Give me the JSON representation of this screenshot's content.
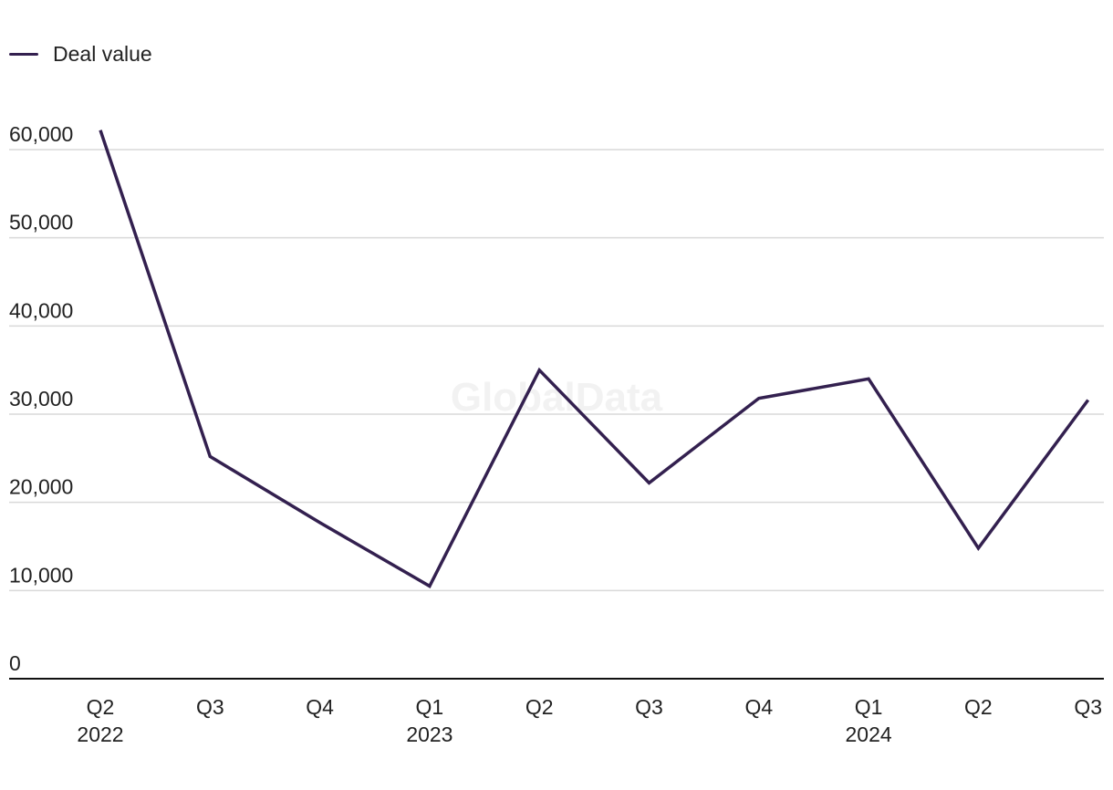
{
  "chart_data": {
    "type": "line",
    "categories": [
      [
        "Q2",
        "2022"
      ],
      [
        "Q3"
      ],
      [
        "Q4"
      ],
      [
        "Q1",
        "2023"
      ],
      [
        "Q2"
      ],
      [
        "Q3"
      ],
      [
        "Q4"
      ],
      [
        "Q1",
        "2024"
      ],
      [
        "Q2"
      ],
      [
        "Q3"
      ]
    ],
    "series": [
      {
        "name": "Deal value",
        "values": [
          62200,
          25200,
          17700,
          10500,
          35000,
          22200,
          31800,
          34000,
          14800,
          31600
        ]
      }
    ],
    "ylim": [
      0,
      60000
    ],
    "yticks": [
      0,
      10000,
      20000,
      30000,
      40000,
      50000,
      60000
    ],
    "ytick_labels": [
      "0",
      "10,000",
      "20,000",
      "30,000",
      "40,000",
      "50,000",
      "60,000"
    ],
    "watermark": "GlobalData",
    "grid": true,
    "legend_position": "top-left",
    "colors": {
      "line": "#33204f",
      "grid": "#d9d9d9",
      "axis": "#111111",
      "text": "#222222",
      "watermark": "#f2f2f2"
    }
  }
}
